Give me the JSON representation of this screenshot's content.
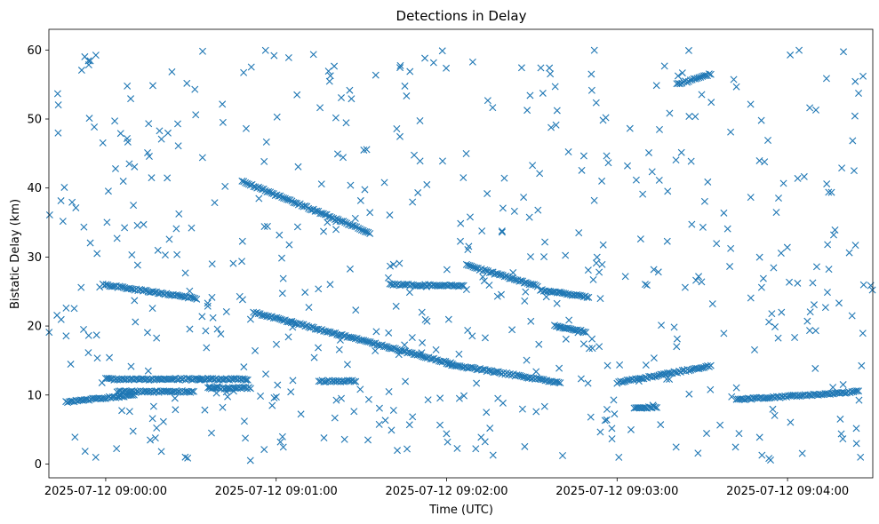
{
  "chart_data": {
    "type": "scatter",
    "title": "Detections in Delay",
    "xlabel": "Time (UTC)",
    "ylabel": "Bistatic Delay (km)",
    "marker": "x",
    "color": "#1f77b4",
    "grid": false,
    "x_start": "2025-07-12 08:59:40",
    "x_end": "2025-07-12 09:04:30",
    "xlim": [
      "2025-07-12 08:59:40",
      "2025-07-12 09:04:30"
    ],
    "ylim": [
      -2,
      63
    ],
    "x_ticks": [
      "2025-07-12 09:00:00",
      "2025-07-12 09:01:00",
      "2025-07-12 09:02:00",
      "2025-07-12 09:03:00",
      "2025-07-12 09:04:00"
    ],
    "y_ticks": [
      "0",
      "10",
      "20",
      "30",
      "40",
      "50",
      "60"
    ],
    "tracks": [
      {
        "from": "2025-07-12 09:00:52",
        "to": "2025-07-12 09:02:02",
        "y_start": 22.0,
        "y_end": 14.5
      },
      {
        "from": "2025-07-12 09:02:00",
        "to": "2025-07-12 09:02:40",
        "y_start": 14.5,
        "y_end": 11.8
      },
      {
        "from": "2025-07-12 09:03:00",
        "to": "2025-07-12 09:03:33",
        "y_start": 11.8,
        "y_end": 14.2
      },
      {
        "from": "2025-07-12 09:00:48",
        "to": "2025-07-12 09:01:33",
        "y_start": 41.0,
        "y_end": 33.5
      },
      {
        "from": "2025-07-12 09:02:07",
        "to": "2025-07-12 09:02:32",
        "y_start": 28.8,
        "y_end": 25.8
      },
      {
        "from": "2025-07-12 08:59:59",
        "to": "2025-07-12 09:00:32",
        "y_start": 26.0,
        "y_end": 24.0
      },
      {
        "from": "2025-07-12 09:01:40",
        "to": "2025-07-12 09:02:06",
        "y_start": 26.0,
        "y_end": 25.8
      },
      {
        "from": "2025-07-12 09:02:33",
        "to": "2025-07-12 09:02:50",
        "y_start": 25.2,
        "y_end": 24.2
      },
      {
        "from": "2025-07-12 09:02:38",
        "to": "2025-07-12 09:02:49",
        "y_start": 20.0,
        "y_end": 19.2
      },
      {
        "from": "2025-07-12 08:59:46",
        "to": "2025-07-12 09:00:10",
        "y_start": 9.0,
        "y_end": 10.0
      },
      {
        "from": "2025-07-12 09:00:00",
        "to": "2025-07-12 09:00:34",
        "y_start": 12.3,
        "y_end": 12.3
      },
      {
        "from": "2025-07-12 09:00:04",
        "to": "2025-07-12 09:00:31",
        "y_start": 10.5,
        "y_end": 10.5
      },
      {
        "from": "2025-07-12 09:00:33",
        "to": "2025-07-12 09:00:50",
        "y_start": 12.3,
        "y_end": 12.3
      },
      {
        "from": "2025-07-12 09:00:36",
        "to": "2025-07-12 09:00:51",
        "y_start": 11.0,
        "y_end": 11.0
      },
      {
        "from": "2025-07-12 09:01:15",
        "to": "2025-07-12 09:01:28",
        "y_start": 12.0,
        "y_end": 12.0
      },
      {
        "from": "2025-07-12 09:03:21",
        "to": "2025-07-12 09:03:33",
        "y_start": 55.0,
        "y_end": 56.5
      },
      {
        "from": "2025-07-12 09:03:42",
        "to": "2025-07-12 09:04:25",
        "y_start": 9.3,
        "y_end": 10.5
      },
      {
        "from": "2025-07-12 09:03:06",
        "to": "2025-07-12 09:03:14",
        "y_start": 8.2,
        "y_end": 8.2
      }
    ],
    "scattered_count": 560
  }
}
